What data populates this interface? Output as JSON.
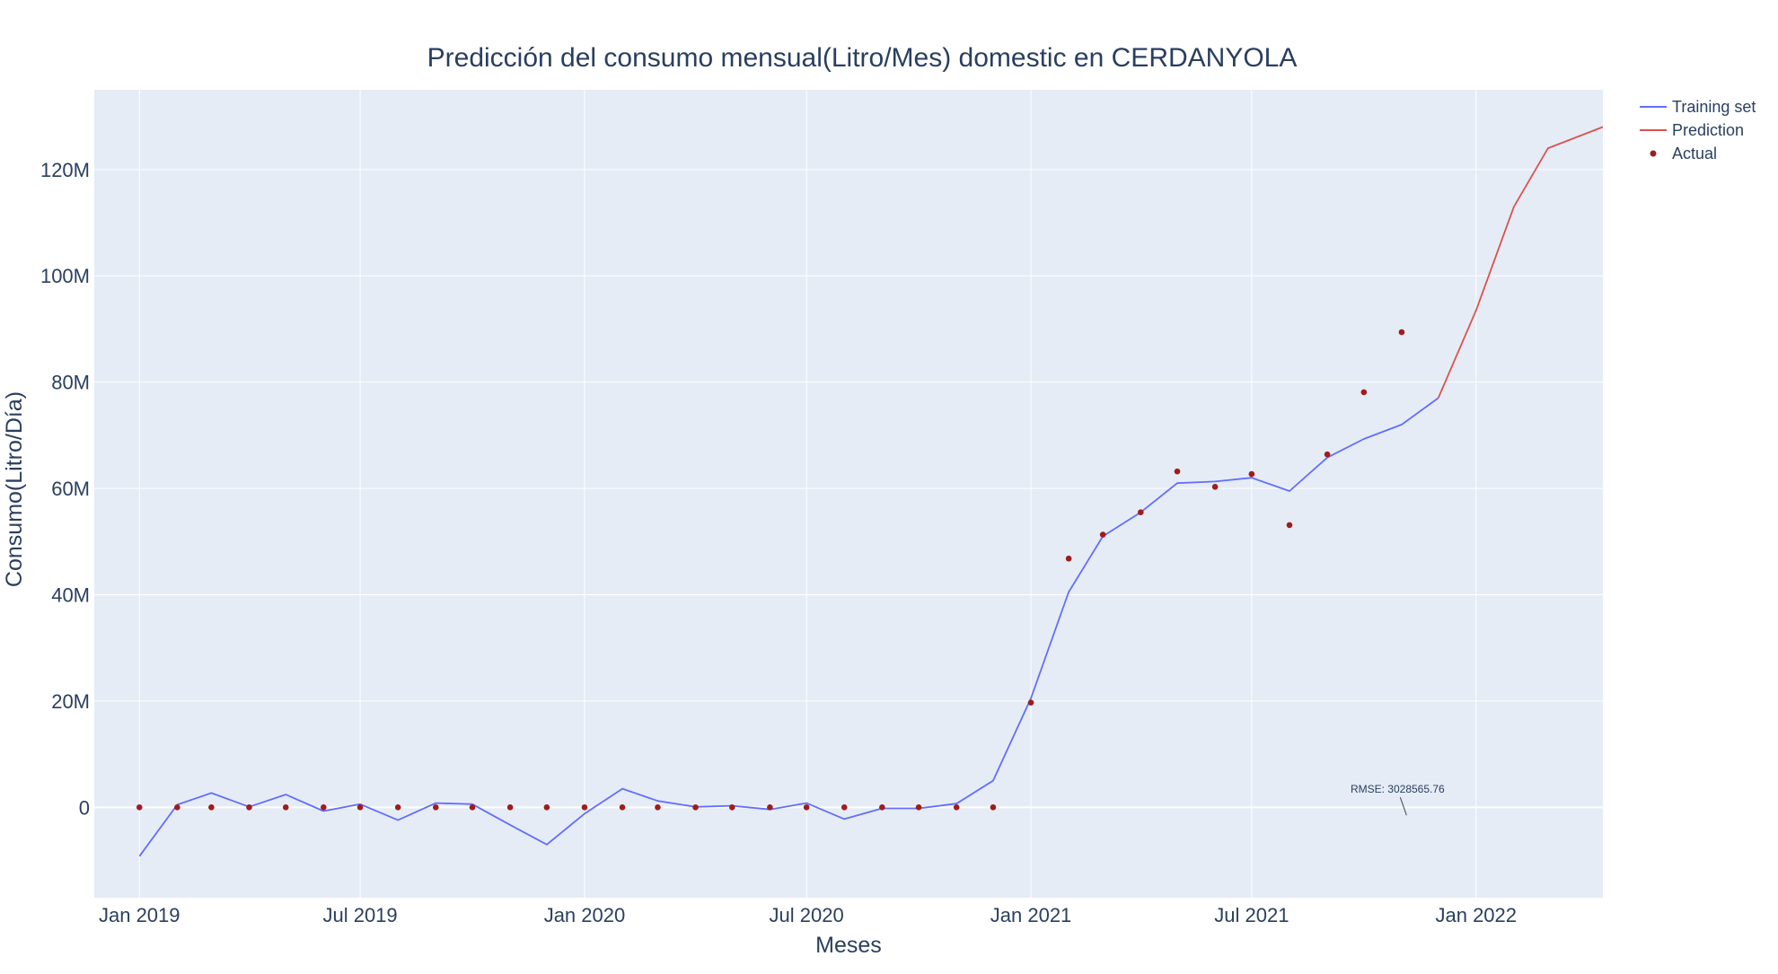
{
  "chart_data": {
    "type": "line",
    "title": "Predicción del consumo mensual(Litro/Mes) domestic en CERDANYOLA",
    "xlabel": "Meses",
    "ylabel": "Consumo(Litro/Día)",
    "x_tick_labels": [
      "Jan 2019",
      "Jul 2019",
      "Jan 2020",
      "Jul 2020",
      "Jan 2021",
      "Jul 2021",
      "Jan 2022"
    ],
    "y_tick_labels": [
      "0",
      "20M",
      "40M",
      "60M",
      "80M",
      "100M",
      "120M"
    ],
    "y_tick_values": [
      0,
      20000000,
      40000000,
      60000000,
      80000000,
      100000000,
      120000000
    ],
    "xlim": [
      "2018-11-25",
      "2022-04-15"
    ],
    "ylim": [
      -17000000,
      135000000
    ],
    "grid": true,
    "legend_position": "top-right",
    "colors": {
      "plot_background": "#e5ecf6",
      "grid": "#ffffff",
      "training": "#636efa",
      "prediction": "#d9534f",
      "actual": "#a01c1c"
    },
    "series": [
      {
        "name": "Training set",
        "mode": "line",
        "x": [
          "2019-01-01",
          "2019-02-01",
          "2019-03-01",
          "2019-04-01",
          "2019-05-01",
          "2019-06-01",
          "2019-07-01",
          "2019-08-01",
          "2019-09-01",
          "2019-10-01",
          "2019-11-01",
          "2019-12-01",
          "2020-01-01",
          "2020-02-01",
          "2020-03-01",
          "2020-04-01",
          "2020-05-01",
          "2020-06-01",
          "2020-07-01",
          "2020-08-01",
          "2020-09-01",
          "2020-10-01",
          "2020-11-01",
          "2020-12-01",
          "2021-01-01",
          "2021-02-01",
          "2021-03-01",
          "2021-04-01",
          "2021-05-01",
          "2021-06-01",
          "2021-07-01",
          "2021-08-01",
          "2021-09-01",
          "2021-10-01",
          "2021-11-01",
          "2021-12-01"
        ],
        "y": [
          -9200000,
          500000,
          2700000,
          100000,
          2400000,
          -700000,
          600000,
          -2400000,
          800000,
          600000,
          -3300000,
          -7000000,
          -1200000,
          3500000,
          1200000,
          100000,
          300000,
          -400000,
          800000,
          -2200000,
          -200000,
          -200000,
          700000,
          5000000,
          20500000,
          40500000,
          51000000,
          55500000,
          61000000,
          61300000,
          62000000,
          59500000,
          65800000,
          69300000,
          72000000,
          77000000
        ]
      },
      {
        "name": "Prediction",
        "mode": "line",
        "x": [
          "2021-12-01",
          "2022-01-01",
          "2022-02-01",
          "2022-03-01",
          "2022-04-15"
        ],
        "y": [
          77000000,
          93500000,
          113000000,
          124000000,
          128000000
        ]
      },
      {
        "name": "Actual",
        "mode": "markers",
        "x": [
          "2019-01-01",
          "2019-02-01",
          "2019-03-01",
          "2019-04-01",
          "2019-05-01",
          "2019-06-01",
          "2019-07-01",
          "2019-08-01",
          "2019-09-01",
          "2019-10-01",
          "2019-11-01",
          "2019-12-01",
          "2020-01-01",
          "2020-02-01",
          "2020-03-01",
          "2020-04-01",
          "2020-05-01",
          "2020-06-01",
          "2020-07-01",
          "2020-08-01",
          "2020-09-01",
          "2020-10-01",
          "2020-11-01",
          "2020-12-01",
          "2021-01-01",
          "2021-02-01",
          "2021-03-01",
          "2021-04-01",
          "2021-05-01",
          "2021-06-01",
          "2021-07-01",
          "2021-08-01",
          "2021-09-01",
          "2021-10-01",
          "2021-11-01"
        ],
        "y": [
          0,
          0,
          0,
          0,
          0,
          0,
          0,
          0,
          0,
          0,
          0,
          0,
          0,
          0,
          0,
          0,
          0,
          0,
          0,
          0,
          0,
          0,
          0,
          0,
          19700000,
          46800000,
          51300000,
          55500000,
          63200000,
          60300000,
          62700000,
          53100000,
          66400000,
          78100000,
          89400000
        ]
      }
    ],
    "annotation": {
      "text": "RMSE: 3028565.76",
      "x": "2021-11-05",
      "y": -1500000
    }
  }
}
